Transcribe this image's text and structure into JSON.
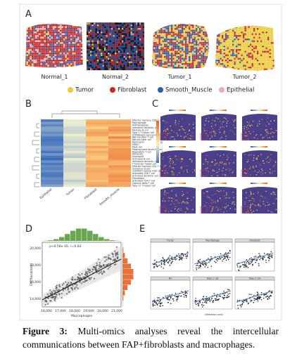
{
  "panels": {
    "A": {
      "label": "A",
      "samples": [
        "Normal_1",
        "Normal_2",
        "Tumor_1",
        "Tumor_2"
      ],
      "legend": [
        "Tumor",
        "Fibroblast",
        "Smooth_Muscle",
        "Epithelial"
      ]
    },
    "B": {
      "label": "B",
      "columns": [
        "Epithelial",
        "Tumor",
        "Fibroblast",
        "Smooth_muscle"
      ],
      "rows": [
        "Effector memory CD8 T cell",
        "Macrophage",
        "FAP.Fibroblasts",
        "Immature dendritic cell",
        "Memory B cell",
        "Type 1 T helper cell",
        "CD56bright natural killer cell",
        "Natural killer T cell",
        "Natural killer cell",
        "Neutrophil",
        "MDSC",
        "Mast cell",
        "Plasmacytoid dendritic cell",
        "Regulatory T cell",
        "Monocyte",
        "Eosinophil",
        "Activated B cell",
        "Immature dendritic cell",
        "T follicular helper cell",
        "Effector memory CD4 T cell",
        "Immature B cell",
        "CD56dim natural killer cell",
        "Activated CD8 T cell",
        "Activated dendritic cell",
        "Fibroblasts",
        "Activated CD4 T cell",
        "Gamma delta T cell",
        "Type 17 T helper cell"
      ],
      "scale": [
        "2",
        "1",
        "0",
        "-1",
        "-2"
      ]
    },
    "C": {
      "label": "C"
    },
    "D": {
      "label": "D",
      "x_label": "Macrophages",
      "y_label": "FAP.fibroblasts",
      "annotation": "p<0.56e-16; r=0.64",
      "xticks": [
        "16,000",
        "17,000",
        "18,000",
        "19,000",
        "20,000",
        "21,000"
      ],
      "yticks": [
        "20,000",
        "18,000",
        "16,000",
        "14,000"
      ]
    },
    "E": {
      "label": "E",
      "panels": [
        "Purity",
        "Macrophage",
        "Fibroblast",
        "M1",
        "Type 1 cell",
        "Type 2 cell"
      ],
      "x_label": "Infiltration Level"
    }
  },
  "caption": {
    "label": "Figure 3:",
    "text": "Multi-omics analyses reveal the intercellular communications between FAP+fibroblasts and macrophages."
  }
}
